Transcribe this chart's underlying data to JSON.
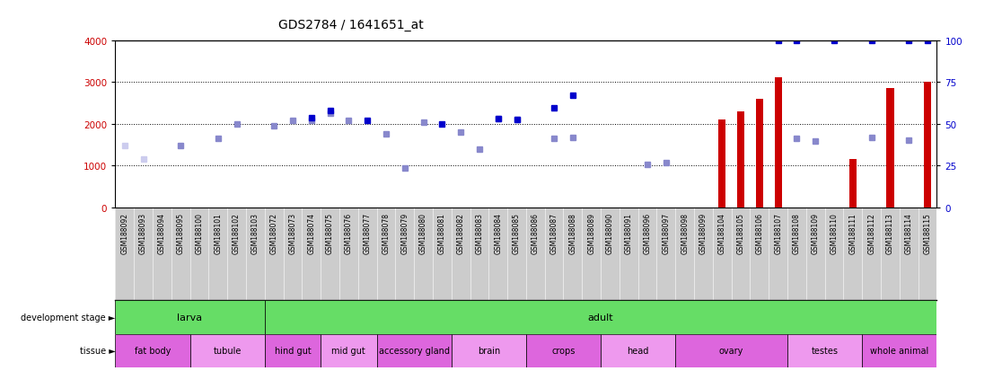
{
  "title": "GDS2784 / 1641651_at",
  "samples": [
    "GSM188092",
    "GSM188093",
    "GSM188094",
    "GSM188095",
    "GSM188100",
    "GSM188101",
    "GSM188102",
    "GSM188103",
    "GSM188072",
    "GSM188073",
    "GSM188074",
    "GSM188075",
    "GSM188076",
    "GSM188077",
    "GSM188078",
    "GSM188079",
    "GSM188080",
    "GSM188081",
    "GSM188082",
    "GSM188083",
    "GSM188084",
    "GSM188085",
    "GSM188086",
    "GSM188087",
    "GSM188088",
    "GSM188089",
    "GSM188090",
    "GSM188091",
    "GSM188096",
    "GSM188097",
    "GSM188098",
    "GSM188099",
    "GSM188104",
    "GSM188105",
    "GSM188106",
    "GSM188107",
    "GSM188108",
    "GSM188109",
    "GSM188110",
    "GSM188111",
    "GSM188112",
    "GSM188113",
    "GSM188114",
    "GSM188115"
  ],
  "count_values": [
    0,
    0,
    0,
    0,
    0,
    0,
    0,
    0,
    0,
    0,
    0,
    0,
    0,
    0,
    0,
    0,
    0,
    0,
    0,
    0,
    0,
    0,
    0,
    0,
    0,
    0,
    0,
    0,
    0,
    0,
    0,
    0,
    2100,
    2300,
    2600,
    3100,
    0,
    0,
    0,
    1150,
    0,
    2850,
    0,
    3000
  ],
  "rank_values": [
    1470,
    1150,
    0,
    1470,
    0,
    1650,
    2000,
    0,
    1950,
    2080,
    2070,
    2250,
    2080,
    0,
    1750,
    950,
    2030,
    0,
    1800,
    1390,
    2120,
    2110,
    0,
    1640,
    1680,
    0,
    0,
    0,
    1020,
    1060,
    0,
    0,
    0,
    0,
    0,
    0,
    1640,
    1580,
    0,
    0,
    1680,
    0,
    1600,
    0
  ],
  "percentile_values": [
    0,
    0,
    0,
    0,
    0,
    0,
    0,
    0,
    0,
    0,
    2140,
    2310,
    0,
    2080,
    0,
    0,
    0,
    2000,
    0,
    0,
    2130,
    2100,
    0,
    2380,
    2670,
    0,
    0,
    0,
    0,
    0,
    0,
    0,
    0,
    0,
    0,
    3980,
    3980,
    0,
    3980,
    0,
    3980,
    0,
    3980,
    3980
  ],
  "absent_count": [
    true,
    true,
    true,
    true,
    true,
    true,
    true,
    true,
    true,
    true,
    true,
    true,
    true,
    true,
    true,
    true,
    true,
    true,
    true,
    true,
    true,
    true,
    true,
    true,
    true,
    true,
    true,
    true,
    true,
    true,
    true,
    true,
    false,
    false,
    false,
    false,
    true,
    true,
    true,
    false,
    true,
    false,
    true,
    false
  ],
  "absent_percentile": [
    true,
    true,
    true,
    true,
    true,
    true,
    true,
    true,
    true,
    true,
    false,
    false,
    true,
    false,
    true,
    true,
    true,
    false,
    true,
    true,
    false,
    false,
    true,
    false,
    false,
    true,
    true,
    true,
    true,
    true,
    true,
    true,
    true,
    true,
    true,
    false,
    false,
    true,
    false,
    true,
    false,
    true,
    false,
    false
  ],
  "absent_rank": [
    true,
    true,
    false,
    false,
    true,
    false,
    false,
    true,
    false,
    false,
    false,
    false,
    false,
    false,
    false,
    false,
    false,
    false,
    false,
    false,
    false,
    false,
    false,
    false,
    false,
    true,
    true,
    true,
    false,
    false,
    true,
    true,
    true,
    true,
    true,
    false,
    false,
    false,
    true,
    true,
    false,
    true,
    false,
    false
  ],
  "dev_stage_groups": [
    {
      "label": "larva",
      "start": 0,
      "end": 8
    },
    {
      "label": "adult",
      "start": 8,
      "end": 44
    }
  ],
  "tissue_groups": [
    {
      "label": "fat body",
      "start": 0,
      "end": 4,
      "alt": false
    },
    {
      "label": "tubule",
      "start": 4,
      "end": 8,
      "alt": true
    },
    {
      "label": "hind gut",
      "start": 8,
      "end": 11,
      "alt": false
    },
    {
      "label": "mid gut",
      "start": 11,
      "end": 14,
      "alt": true
    },
    {
      "label": "accessory gland",
      "start": 14,
      "end": 18,
      "alt": false
    },
    {
      "label": "brain",
      "start": 18,
      "end": 22,
      "alt": true
    },
    {
      "label": "crops",
      "start": 22,
      "end": 26,
      "alt": false
    },
    {
      "label": "head",
      "start": 26,
      "end": 30,
      "alt": true
    },
    {
      "label": "ovary",
      "start": 30,
      "end": 36,
      "alt": false
    },
    {
      "label": "testes",
      "start": 36,
      "end": 40,
      "alt": true
    },
    {
      "label": "whole animal",
      "start": 40,
      "end": 44,
      "alt": false
    }
  ],
  "ylim_left": [
    0,
    4000
  ],
  "ylim_right": [
    0,
    100
  ],
  "yticks_left": [
    0,
    1000,
    2000,
    3000,
    4000
  ],
  "yticks_right": [
    0,
    25,
    50,
    75,
    100
  ],
  "count_color": "#cc0000",
  "percentile_color_present": "#0000cc",
  "percentile_color_absent": "#f0a0a0",
  "rank_color_present": "#8888cc",
  "rank_color_absent": "#ccccee",
  "dev_color": "#66dd66",
  "tissue_color_a": "#dd66dd",
  "tissue_color_b": "#ee99ee",
  "bg_color": "#ffffff",
  "plot_bg_color": "#ffffff",
  "grid_color": "#000000",
  "bar_width": 0.4
}
